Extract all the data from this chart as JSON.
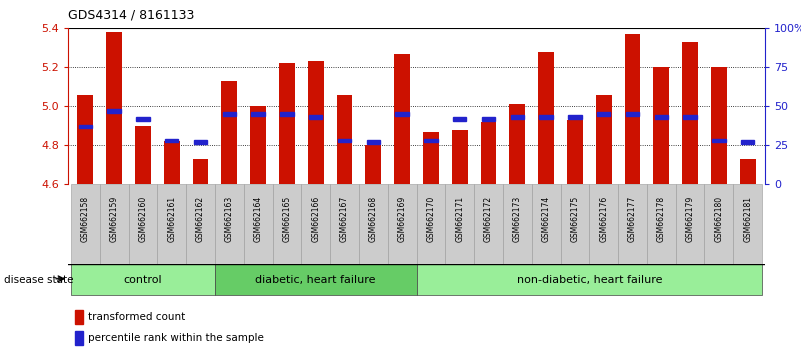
{
  "title": "GDS4314 / 8161133",
  "samples": [
    "GSM662158",
    "GSM662159",
    "GSM662160",
    "GSM662161",
    "GSM662162",
    "GSM662163",
    "GSM662164",
    "GSM662165",
    "GSM662166",
    "GSM662167",
    "GSM662168",
    "GSM662169",
    "GSM662170",
    "GSM662171",
    "GSM662172",
    "GSM662173",
    "GSM662174",
    "GSM662175",
    "GSM662176",
    "GSM662177",
    "GSM662178",
    "GSM662179",
    "GSM662180",
    "GSM662181"
  ],
  "transformed_counts": [
    5.06,
    5.38,
    4.9,
    4.82,
    4.73,
    5.13,
    5.0,
    5.22,
    5.23,
    5.06,
    4.8,
    5.27,
    4.87,
    4.88,
    4.92,
    5.01,
    5.28,
    4.93,
    5.06,
    5.37,
    5.2,
    5.33,
    5.2,
    4.73
  ],
  "percentile_ranks": [
    37,
    47,
    42,
    28,
    27,
    45,
    45,
    45,
    43,
    28,
    27,
    45,
    28,
    42,
    42,
    43,
    43,
    43,
    45,
    45,
    43,
    43,
    28,
    27
  ],
  "groups": [
    {
      "label": "control",
      "start": 0,
      "end": 5,
      "color": "#99EE99"
    },
    {
      "label": "diabetic, heart failure",
      "start": 5,
      "end": 12,
      "color": "#66CC66"
    },
    {
      "label": "non-diabetic, heart failure",
      "start": 12,
      "end": 24,
      "color": "#99EE99"
    }
  ],
  "ylim": [
    4.6,
    5.4
  ],
  "yticks_left": [
    4.6,
    4.8,
    5.0,
    5.2,
    5.4
  ],
  "yticks_right": [
    0,
    25,
    50,
    75,
    100
  ],
  "bar_color": "#CC1100",
  "percentile_color": "#2222CC",
  "bar_width": 0.55,
  "axis_label_color_left": "#CC1100",
  "axis_label_color_right": "#2222CC",
  "disease_state_label": "disease state",
  "legend_items": [
    {
      "label": "transformed count",
      "color": "#CC1100"
    },
    {
      "label": "percentile rank within the sample",
      "color": "#2222CC"
    }
  ]
}
